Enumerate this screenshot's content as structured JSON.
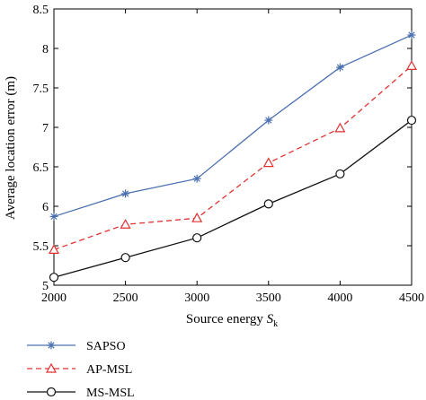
{
  "chart_data": {
    "type": "line",
    "xlabel": "Source energy ",
    "xlabel_symbol": "S",
    "xlabel_subscript": "k",
    "ylabel": "Average location error (m)",
    "x": [
      2000,
      2500,
      3000,
      3500,
      4000,
      4500
    ],
    "xlim": [
      2000,
      4500
    ],
    "ylim": [
      5,
      8.5
    ],
    "xticks": [
      2000,
      2500,
      3000,
      3500,
      4000,
      4500
    ],
    "yticks": [
      5,
      5.5,
      6,
      6.5,
      7,
      7.5,
      8,
      8.5
    ],
    "grid": false,
    "legend_position": "below-left",
    "series": [
      {
        "name": "SAPSO",
        "values": [
          5.87,
          6.16,
          6.35,
          7.09,
          7.76,
          8.17
        ],
        "color": "#4a6fb0",
        "dash": "solid",
        "marker": "asterisk"
      },
      {
        "name": "AP-MSL",
        "values": [
          5.45,
          5.77,
          5.85,
          6.55,
          6.99,
          7.78
        ],
        "color": "#e03030",
        "dash": "dashed",
        "marker": "triangle"
      },
      {
        "name": "MS-MSL",
        "values": [
          5.1,
          5.35,
          5.6,
          6.03,
          6.41,
          7.09
        ],
        "color": "#111111",
        "dash": "solid",
        "marker": "circle"
      }
    ]
  }
}
